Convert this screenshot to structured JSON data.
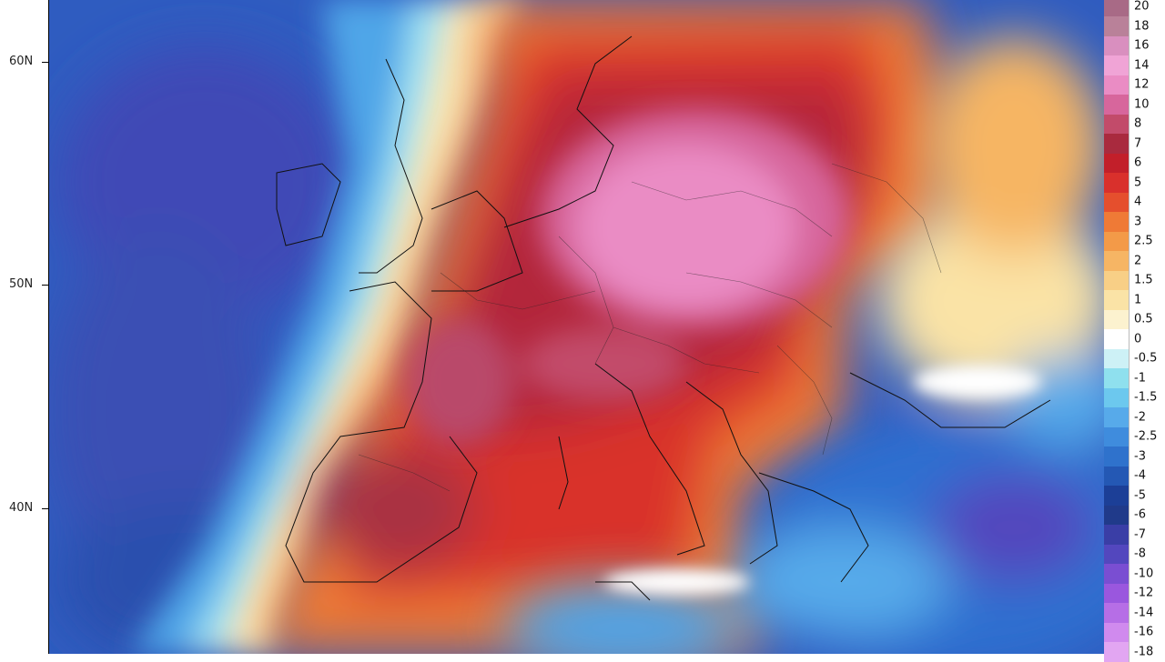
{
  "map": {
    "latitude_labels": [
      "60N",
      "50N",
      "40N"
    ],
    "field_colors": {
      "ocean_deep": "#3b4fb0",
      "ocean_mid": "#2f6fd0",
      "cold_blue": "#4fa3e6",
      "near_zero": "#f7f2c8",
      "warm_orange": "#f08a3a",
      "warm_red": "#d9412a",
      "hot_darkred": "#b3283a",
      "hot_rose": "#c9577a",
      "hot_pink": "#e58cc6"
    }
  },
  "legend": {
    "entries": [
      {
        "label": "20",
        "color": "#a86a86"
      },
      {
        "label": "18",
        "color": "#b98199"
      },
      {
        "label": "16",
        "color": "#d98fbf"
      },
      {
        "label": "14",
        "color": "#f0a4d6"
      },
      {
        "label": "12",
        "color": "#ea8cc4"
      },
      {
        "label": "10",
        "color": "#d7669c"
      },
      {
        "label": "8",
        "color": "#c24b6a"
      },
      {
        "label": "7",
        "color": "#a92a3e"
      },
      {
        "label": "6",
        "color": "#c21f2a"
      },
      {
        "label": "5",
        "color": "#d9302c"
      },
      {
        "label": "4",
        "color": "#e54f2d"
      },
      {
        "label": "3",
        "color": "#ef7a36"
      },
      {
        "label": "2.5",
        "color": "#f39a48"
      },
      {
        "label": "2",
        "color": "#f6b564"
      },
      {
        "label": "1.5",
        "color": "#f8cf86"
      },
      {
        "label": "1",
        "color": "#fae3a6"
      },
      {
        "label": "0.5",
        "color": "#fcf2cf"
      },
      {
        "label": "0",
        "color": "#ffffff"
      },
      {
        "label": "-0.5",
        "color": "#cdf1f6"
      },
      {
        "label": "-1",
        "color": "#8fe0ee"
      },
      {
        "label": "-1.5",
        "color": "#6cc8ee"
      },
      {
        "label": "-2",
        "color": "#57aaea"
      },
      {
        "label": "-2.5",
        "color": "#3f8cdd"
      },
      {
        "label": "-3",
        "color": "#2f72cc"
      },
      {
        "label": "-4",
        "color": "#2458b4"
      },
      {
        "label": "-5",
        "color": "#1c3f97"
      },
      {
        "label": "-6",
        "color": "#203a8a"
      },
      {
        "label": "-7",
        "color": "#3a3ea6"
      },
      {
        "label": "-8",
        "color": "#5347be"
      },
      {
        "label": "-10",
        "color": "#7a4ed2"
      },
      {
        "label": "-12",
        "color": "#9a57de"
      },
      {
        "label": "-14",
        "color": "#b66ee6"
      },
      {
        "label": "-16",
        "color": "#d08aee"
      },
      {
        "label": "-18",
        "color": "#e2a6f2"
      }
    ]
  }
}
